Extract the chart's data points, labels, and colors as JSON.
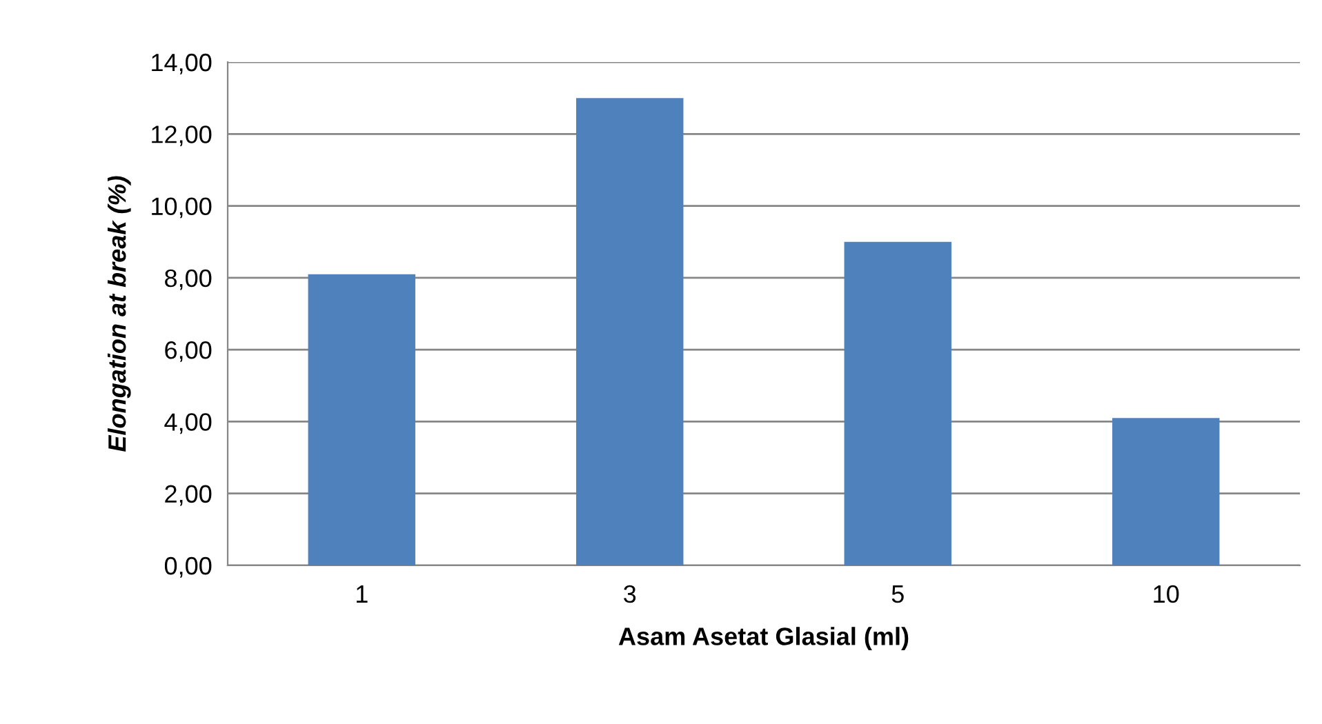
{
  "chart_data": {
    "type": "bar",
    "xlabel": "Asam Asetat Glasial (ml)",
    "ylabel": "Elongation at break (%)",
    "categories": [
      "1",
      "3",
      "5",
      "10"
    ],
    "values": [
      8.1,
      13.0,
      9.0,
      4.1
    ],
    "color": "#4f81bd",
    "ylim": [
      0,
      14
    ],
    "yticks": [
      {
        "value": 0,
        "label": "0,00"
      },
      {
        "value": 2,
        "label": "2,00"
      },
      {
        "value": 4,
        "label": "4,00"
      },
      {
        "value": 6,
        "label": "6,00"
      },
      {
        "value": 8,
        "label": "8,00"
      },
      {
        "value": 10,
        "label": "10,00"
      },
      {
        "value": 12,
        "label": "12,00"
      },
      {
        "value": 14,
        "label": "14,00"
      }
    ],
    "grid": "y",
    "legend": false
  }
}
